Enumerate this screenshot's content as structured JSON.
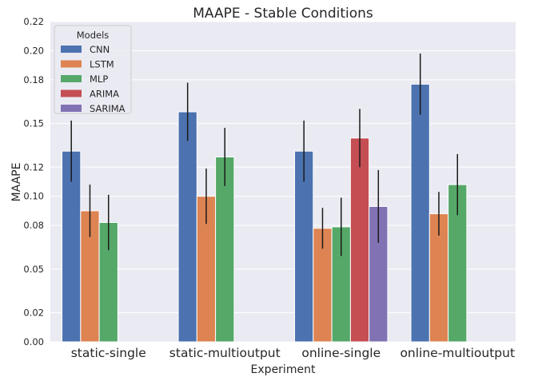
{
  "chart_data": {
    "type": "bar",
    "title": "MAAPE - Stable Conditions",
    "xlabel": "Experiment",
    "ylabel": "MAAPE",
    "ylim": [
      0,
      0.22
    ],
    "yticks": [
      0.0,
      0.02,
      0.05,
      0.08,
      0.1,
      0.12,
      0.15,
      0.18,
      0.2,
      0.22
    ],
    "ytick_labels": [
      "0.00",
      "0.02",
      "0.05",
      "0.08",
      "0.10",
      "0.12",
      "0.15",
      "0.18",
      "0.20",
      "0.22"
    ],
    "categories": [
      "static-single",
      "static-multioutput",
      "online-single",
      "online-multioutput"
    ],
    "grid": true,
    "legend": {
      "title": "Models",
      "placement": "top-left"
    },
    "series": [
      {
        "name": "CNN",
        "color": "#4c72b0",
        "values": [
          0.131,
          0.158,
          0.131,
          0.177
        ],
        "errors": [
          0.021,
          0.02,
          0.021,
          0.021
        ]
      },
      {
        "name": "LSTM",
        "color": "#dd8452",
        "values": [
          0.09,
          0.1,
          0.078,
          0.088
        ],
        "errors": [
          0.018,
          0.019,
          0.014,
          0.015
        ]
      },
      {
        "name": "MLP",
        "color": "#55a868",
        "values": [
          0.082,
          0.127,
          0.079,
          0.108
        ],
        "errors": [
          0.019,
          0.02,
          0.02,
          0.021
        ]
      },
      {
        "name": "ARIMA",
        "color": "#c44e52",
        "values": [
          null,
          null,
          0.14,
          null
        ],
        "errors": [
          null,
          null,
          0.02,
          null
        ]
      },
      {
        "name": "SARIMA",
        "color": "#8172b3",
        "values": [
          null,
          null,
          0.093,
          null
        ],
        "errors": [
          null,
          null,
          0.025,
          null
        ]
      }
    ]
  }
}
